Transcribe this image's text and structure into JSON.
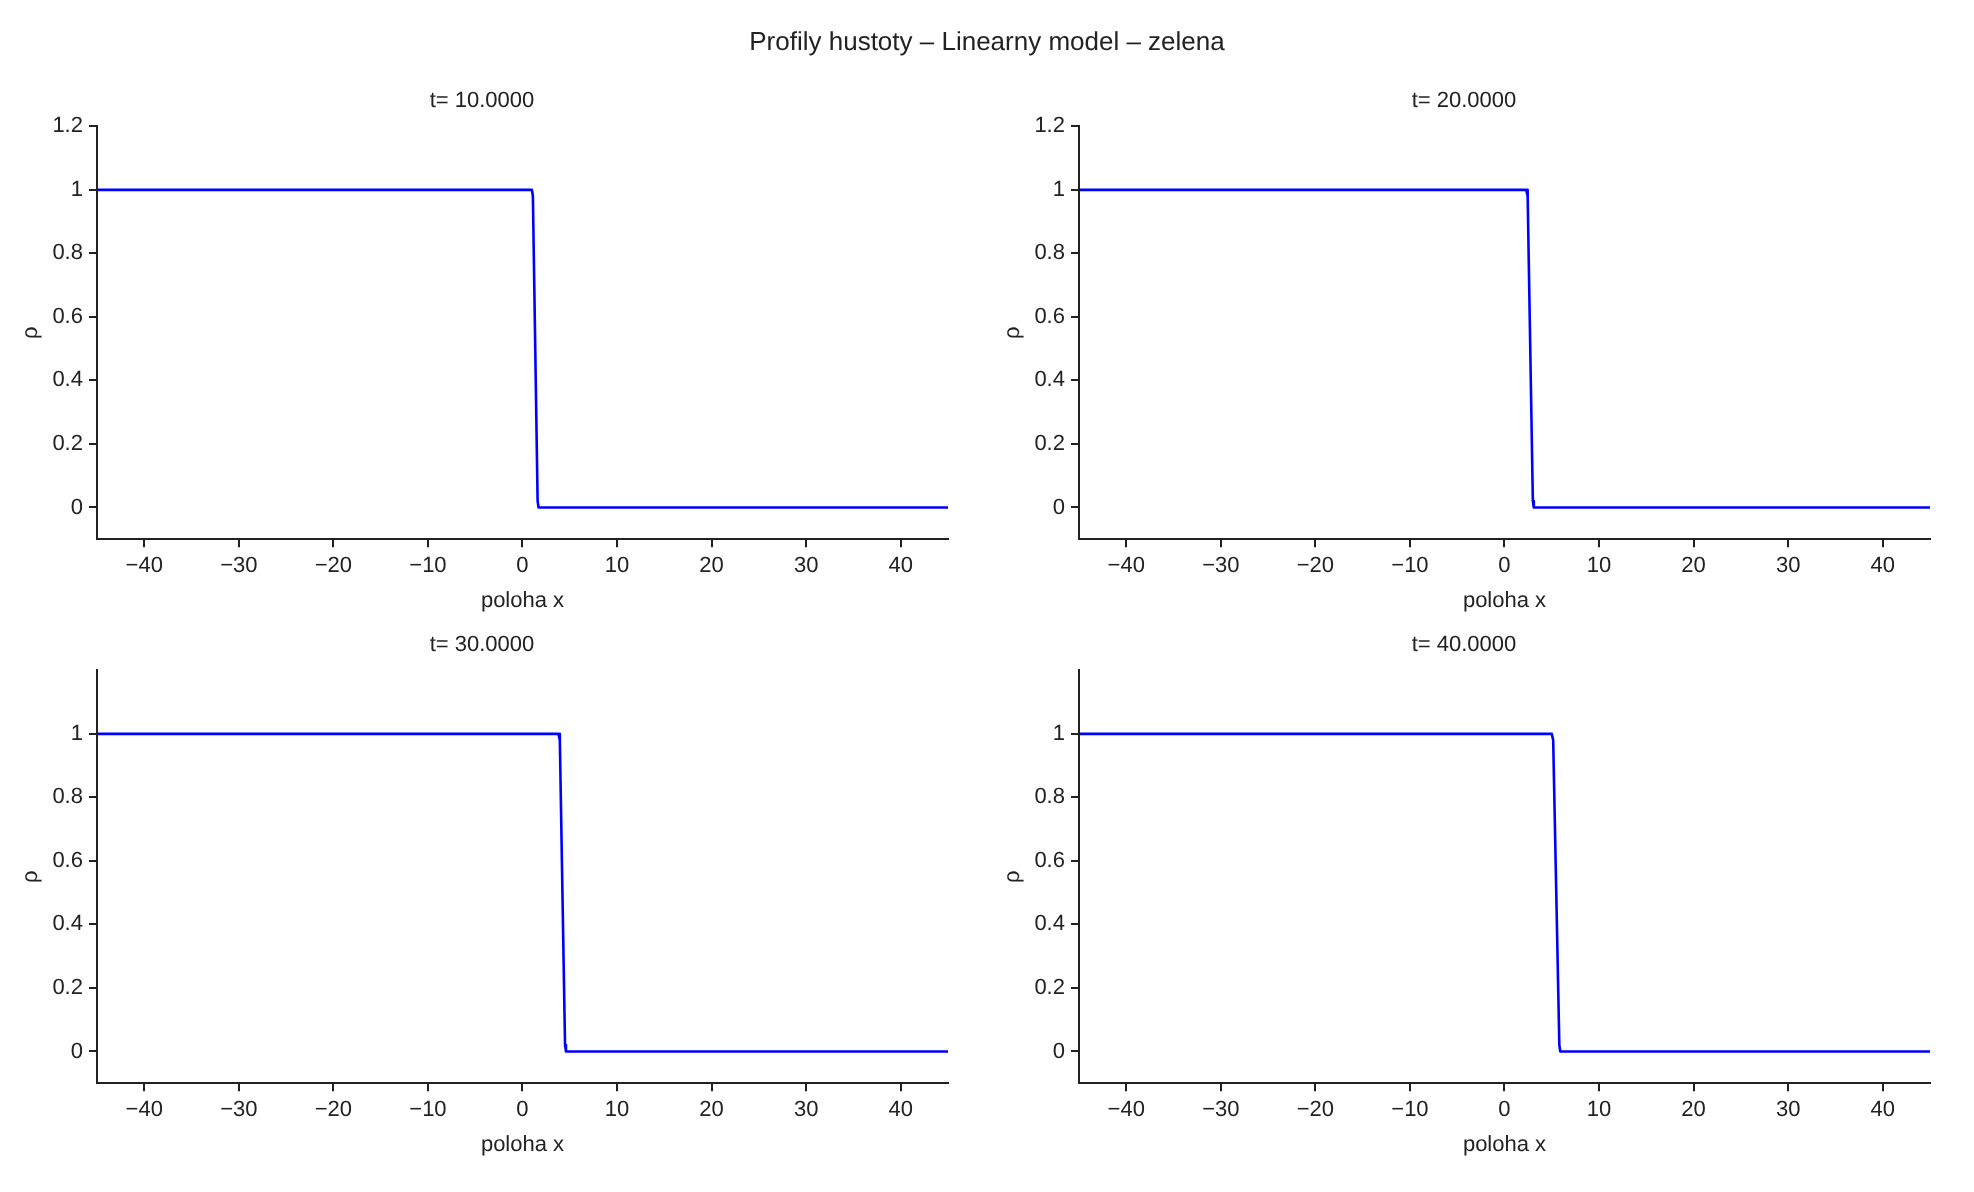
{
  "chart_data": [
    {
      "type": "line",
      "title": "t= 10.0000",
      "xlabel": "poloha x",
      "ylabel": "ρ",
      "annotations": [
        "Profily hustoty – Linearny model – zelena"
      ],
      "x": [
        -45,
        1.0,
        1.1,
        1.6,
        1.7,
        45
      ],
      "series": [
        {
          "color": "#0000ff",
          "values": [
            1,
            1,
            0.98,
            0.02,
            0,
            0
          ]
        }
      ],
      "xlim": [
        -45,
        45
      ],
      "ylim": [
        -0.1,
        1.2
      ],
      "xticks": [
        {
          "value": -40,
          "label": "−40"
        },
        {
          "value": -30,
          "label": "−30"
        },
        {
          "value": -20,
          "label": "−20"
        },
        {
          "value": -10,
          "label": "−10"
        },
        0,
        10,
        20,
        30,
        40
      ],
      "yticks": [
        0,
        0.2,
        0.4,
        0.6,
        0.8,
        1,
        1.2
      ],
      "grid": false
    },
    {
      "type": "line",
      "title": "t= 20.0000",
      "xlabel": "poloha x",
      "ylabel": "ρ",
      "x": [
        -45,
        2.3,
        2.45,
        3.0,
        3.1,
        45
      ],
      "series": [
        {
          "color": "#0000ff",
          "values": [
            1,
            1,
            0.98,
            0.02,
            0,
            0
          ]
        }
      ],
      "xlim": [
        -45,
        45
      ],
      "ylim": [
        -0.1,
        1.2
      ],
      "xticks": [
        {
          "value": -40,
          "label": "−40"
        },
        {
          "value": -30,
          "label": "−30"
        },
        {
          "value": -20,
          "label": "−20"
        },
        {
          "value": -10,
          "label": "−10"
        },
        0,
        10,
        20,
        30,
        40
      ],
      "yticks": [
        0,
        0.2,
        0.4,
        0.6,
        0.8,
        1,
        1.2
      ],
      "grid": false
    },
    {
      "type": "line",
      "title": "t= 30.0000",
      "xlabel": "poloha x",
      "ylabel": "ρ",
      "x": [
        -45,
        3.8,
        3.95,
        4.5,
        4.6,
        45
      ],
      "series": [
        {
          "color": "#0000ff",
          "values": [
            1,
            1,
            0.98,
            0.02,
            0,
            0
          ]
        }
      ],
      "xlim": [
        -45,
        45
      ],
      "ylim": [
        -0.1,
        1.2
      ],
      "xticks": [
        {
          "value": -40,
          "label": "−40"
        },
        {
          "value": -30,
          "label": "−30"
        },
        {
          "value": -20,
          "label": "−20"
        },
        {
          "value": -10,
          "label": "−10"
        },
        0,
        10,
        20,
        30,
        40
      ],
      "yticks": [
        0,
        0.2,
        0.4,
        0.6,
        0.8,
        1
      ],
      "grid": false
    },
    {
      "type": "line",
      "title": "t= 40.0000",
      "xlabel": "poloha x",
      "ylabel": "ρ",
      "x": [
        -45,
        5.0,
        5.15,
        5.8,
        5.9,
        45
      ],
      "series": [
        {
          "color": "#0000ff",
          "values": [
            1,
            1,
            0.98,
            0.02,
            0,
            0
          ]
        }
      ],
      "xlim": [
        -45,
        45
      ],
      "ylim": [
        -0.1,
        1.2
      ],
      "xticks": [
        {
          "value": -40,
          "label": "−40"
        },
        {
          "value": -30,
          "label": "−30"
        },
        {
          "value": -20,
          "label": "−20"
        },
        {
          "value": -10,
          "label": "−10"
        },
        0,
        10,
        20,
        30,
        40
      ],
      "yticks": [
        0,
        0.2,
        0.4,
        0.6,
        0.8,
        1
      ],
      "grid": false
    }
  ]
}
